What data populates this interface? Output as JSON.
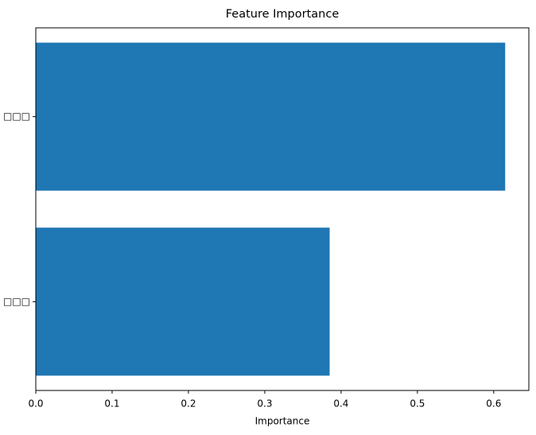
{
  "chart_data": {
    "type": "barh",
    "title": "Feature Importance",
    "xlabel": "Importance",
    "categories": [
      "□□□",
      "□□□"
    ],
    "values": [
      0.385,
      0.615
    ],
    "color": "#1f77b4",
    "xlim": [
      0,
      0.646
    ],
    "xticks": [
      0.0,
      0.1,
      0.2,
      0.3,
      0.4,
      0.5,
      0.6
    ],
    "grid": false
  }
}
